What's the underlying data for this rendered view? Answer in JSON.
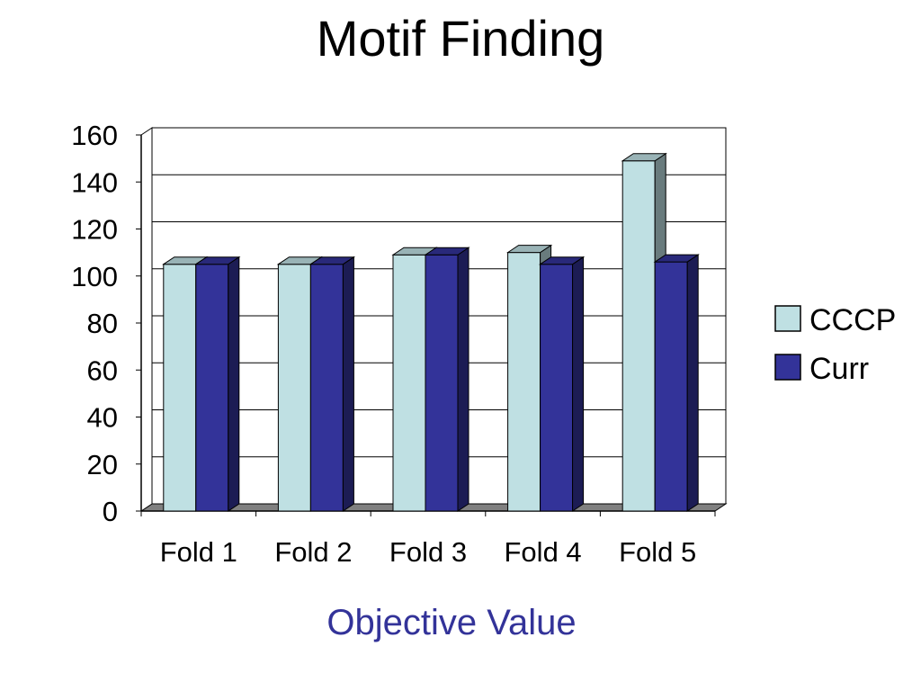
{
  "chart_data": {
    "type": "bar",
    "title": "Motif Finding",
    "xlabel": "Objective Value",
    "ylabel": "",
    "categories": [
      "Fold 1",
      "Fold 2",
      "Fold 3",
      "Fold 4",
      "Fold 5"
    ],
    "series": [
      {
        "name": "CCCP",
        "values": [
          105,
          105,
          109,
          110,
          149
        ],
        "color": "#BFE0E3"
      },
      {
        "name": "Curr",
        "values": [
          105,
          105,
          109,
          105,
          106
        ],
        "color": "#333399"
      }
    ],
    "ylim": [
      0,
      160
    ],
    "yticks": [
      0,
      20,
      40,
      60,
      80,
      100,
      120,
      140,
      160
    ],
    "grid": true,
    "legend": "right",
    "style": "3d-clustered-column"
  }
}
